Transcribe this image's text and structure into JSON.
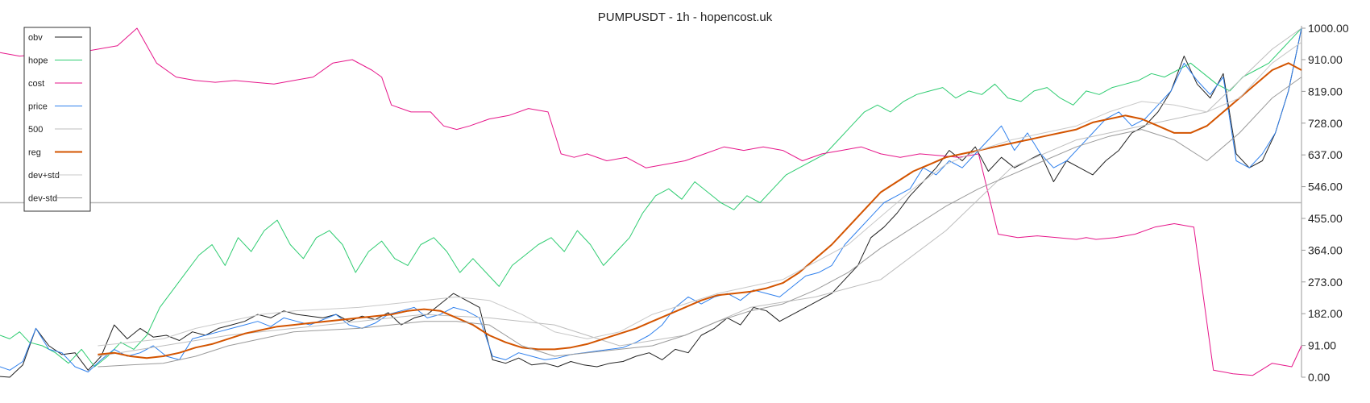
{
  "chart_data": {
    "type": "line",
    "title": "PUMPUSDT - 1h - hopencost.uk",
    "xlabel": "",
    "ylabel": "",
    "ylim": [
      0,
      1000
    ],
    "y_ticks": [
      "0.00",
      "91.00",
      "182.00",
      "273.00",
      "364.00",
      "455.00",
      "546.00",
      "637.00",
      "728.00",
      "819.00",
      "910.00",
      "1000.00"
    ],
    "y_tick_values": [
      0,
      91,
      182,
      273,
      364,
      455,
      546,
      637,
      728,
      819,
      910,
      1000
    ],
    "legend_position": "top-left",
    "grid": false,
    "reference_line": 500,
    "series": [
      {
        "name": "obv",
        "color": "#222222",
        "width": 1,
        "x": [
          0,
          3,
          7,
          11,
          15,
          19,
          23,
          27,
          31,
          35,
          39,
          43,
          47,
          51,
          55,
          59,
          63,
          67,
          71,
          75,
          79,
          83,
          87,
          91,
          95,
          99,
          103,
          107,
          111,
          115,
          119,
          123,
          127,
          131,
          135,
          139,
          143,
          147,
          151,
          155,
          159,
          163,
          167,
          171,
          175,
          179,
          183,
          187,
          191,
          195,
          199,
          203,
          207,
          211,
          215,
          219,
          223,
          227,
          231,
          235,
          239,
          243,
          247,
          251,
          255,
          259,
          263,
          267,
          271,
          275,
          279,
          283,
          287,
          291,
          295,
          299,
          303,
          307,
          311,
          315,
          319,
          323,
          327,
          331,
          335,
          339,
          343,
          347,
          351,
          355,
          359,
          363,
          367,
          371,
          375,
          379,
          383,
          387,
          391,
          395,
          399
        ],
        "values": [
          2,
          0,
          35,
          140,
          90,
          65,
          70,
          20,
          60,
          150,
          110,
          140,
          115,
          120,
          105,
          130,
          120,
          140,
          150,
          160,
          180,
          170,
          190,
          180,
          175,
          170,
          180,
          160,
          175,
          165,
          185,
          150,
          170,
          180,
          210,
          240,
          220,
          200,
          50,
          40,
          55,
          35,
          40,
          30,
          45,
          35,
          30,
          40,
          45,
          60,
          70,
          50,
          80,
          70,
          120,
          140,
          170,
          150,
          200,
          190,
          160,
          180,
          200,
          220,
          240,
          280,
          320,
          400,
          430,
          470,
          520,
          560,
          600,
          650,
          620,
          660,
          590,
          630,
          600,
          620,
          640,
          560,
          620,
          600,
          580,
          620,
          650,
          700,
          720,
          760,
          820,
          920,
          840,
          800,
          870,
          640,
          600,
          620,
          700,
          820,
          1000
        ]
      },
      {
        "name": "hope",
        "color": "#2ecc71",
        "width": 1,
        "x": [
          0,
          3,
          6,
          9,
          13,
          17,
          21,
          25,
          29,
          33,
          37,
          41,
          45,
          49,
          53,
          57,
          61,
          65,
          69,
          73,
          77,
          81,
          85,
          89,
          93,
          97,
          101,
          105,
          109,
          113,
          117,
          121,
          125,
          129,
          133,
          137,
          141,
          145,
          149,
          153,
          157,
          161,
          165,
          169,
          173,
          177,
          181,
          185,
          189,
          193,
          197,
          201,
          205,
          209,
          213,
          217,
          221,
          225,
          229,
          233,
          237,
          241,
          245,
          249,
          253,
          257,
          261,
          265,
          269,
          273,
          277,
          281,
          285,
          289,
          293,
          297,
          301,
          305,
          309,
          313,
          317,
          321,
          325,
          329,
          333,
          337,
          341,
          345,
          349,
          353,
          357,
          361,
          365,
          369,
          373,
          377,
          381,
          385,
          389,
          393,
          397,
          399
        ],
        "values": [
          120,
          110,
          130,
          100,
          90,
          70,
          40,
          80,
          30,
          60,
          100,
          80,
          120,
          200,
          250,
          300,
          350,
          380,
          320,
          400,
          360,
          420,
          450,
          380,
          340,
          400,
          420,
          380,
          300,
          360,
          390,
          340,
          320,
          380,
          400,
          360,
          300,
          340,
          300,
          260,
          320,
          350,
          380,
          400,
          360,
          420,
          380,
          320,
          360,
          400,
          470,
          520,
          540,
          510,
          560,
          530,
          500,
          480,
          520,
          500,
          540,
          580,
          600,
          620,
          640,
          680,
          720,
          760,
          780,
          760,
          790,
          810,
          820,
          830,
          800,
          820,
          810,
          840,
          800,
          790,
          820,
          830,
          800,
          780,
          820,
          810,
          830,
          840,
          850,
          870,
          860,
          880,
          900,
          870,
          840,
          820,
          860,
          880,
          900,
          940,
          980,
          1000
        ]
      },
      {
        "name": "cost",
        "color": "#e6168a",
        "width": 1,
        "x": [
          0,
          6,
          12,
          18,
          24,
          30,
          36,
          42,
          48,
          54,
          57,
          60,
          66,
          72,
          78,
          84,
          90,
          96,
          102,
          108,
          114,
          117,
          120,
          126,
          132,
          136,
          140,
          144,
          150,
          156,
          162,
          168,
          172,
          176,
          180,
          186,
          192,
          198,
          204,
          210,
          216,
          222,
          228,
          234,
          240,
          246,
          252,
          258,
          264,
          270,
          276,
          282,
          288,
          294,
          300,
          306,
          312,
          318,
          324,
          330,
          333,
          336,
          342,
          348,
          354,
          360,
          366,
          372,
          378,
          384,
          390,
          396,
          399
        ],
        "values": [
          930,
          920,
          925,
          910,
          930,
          940,
          950,
          1000,
          900,
          860,
          855,
          850,
          845,
          850,
          845,
          840,
          850,
          860,
          900,
          910,
          880,
          860,
          780,
          760,
          760,
          720,
          710,
          720,
          740,
          750,
          770,
          760,
          640,
          630,
          640,
          620,
          630,
          600,
          610,
          620,
          640,
          660,
          650,
          660,
          650,
          620,
          640,
          650,
          660,
          640,
          630,
          640,
          635,
          630,
          640,
          410,
          400,
          405,
          400,
          395,
          400,
          395,
          400,
          410,
          430,
          440,
          430,
          20,
          10,
          5,
          40,
          30,
          90
        ]
      },
      {
        "name": "price",
        "color": "#2f80ed",
        "width": 1,
        "x": [
          0,
          3,
          7,
          11,
          15,
          19,
          23,
          27,
          31,
          35,
          39,
          43,
          47,
          51,
          55,
          59,
          63,
          67,
          71,
          75,
          79,
          83,
          87,
          91,
          95,
          99,
          103,
          107,
          111,
          115,
          119,
          123,
          127,
          131,
          135,
          139,
          143,
          147,
          151,
          155,
          159,
          163,
          167,
          171,
          175,
          179,
          183,
          187,
          191,
          195,
          199,
          203,
          207,
          211,
          215,
          219,
          223,
          227,
          231,
          235,
          239,
          243,
          247,
          251,
          255,
          259,
          263,
          267,
          271,
          275,
          279,
          283,
          287,
          291,
          295,
          299,
          303,
          307,
          311,
          315,
          319,
          323,
          327,
          331,
          335,
          339,
          343,
          347,
          351,
          355,
          359,
          363,
          367,
          371,
          375,
          379,
          383,
          387,
          391,
          395,
          399
        ],
        "values": [
          30,
          20,
          45,
          140,
          80,
          70,
          30,
          15,
          50,
          80,
          60,
          70,
          90,
          60,
          50,
          110,
          120,
          130,
          140,
          150,
          160,
          145,
          170,
          160,
          150,
          165,
          180,
          150,
          140,
          155,
          180,
          190,
          200,
          170,
          180,
          200,
          190,
          170,
          60,
          50,
          70,
          60,
          50,
          55,
          65,
          70,
          75,
          80,
          85,
          100,
          120,
          150,
          200,
          230,
          210,
          230,
          240,
          220,
          250,
          240,
          230,
          260,
          290,
          300,
          320,
          380,
          420,
          460,
          500,
          520,
          540,
          600,
          580,
          620,
          600,
          640,
          680,
          720,
          650,
          700,
          640,
          600,
          620,
          660,
          700,
          740,
          760,
          720,
          740,
          780,
          820,
          900,
          850,
          810,
          860,
          620,
          600,
          640,
          700,
          820,
          1000
        ]
      },
      {
        "name": "500",
        "color": "#bdbdbd",
        "width": 1,
        "x": [
          30,
          50,
          70,
          90,
          110,
          130,
          150,
          170,
          190,
          210,
          230,
          250,
          270,
          290,
          310,
          330,
          350,
          370,
          390,
          399
        ],
        "values": [
          60,
          90,
          120,
          140,
          160,
          180,
          170,
          150,
          90,
          120,
          200,
          230,
          280,
          420,
          600,
          680,
          720,
          760,
          940,
          1000
        ]
      },
      {
        "name": "reg",
        "color": "#d35400",
        "width": 2,
        "x": [
          30,
          35,
          40,
          45,
          50,
          55,
          60,
          65,
          70,
          75,
          80,
          85,
          90,
          95,
          100,
          105,
          110,
          115,
          120,
          125,
          130,
          135,
          140,
          145,
          150,
          155,
          160,
          165,
          170,
          175,
          180,
          185,
          190,
          195,
          200,
          205,
          210,
          215,
          220,
          225,
          230,
          235,
          240,
          245,
          250,
          255,
          260,
          265,
          270,
          275,
          280,
          285,
          290,
          295,
          300,
          305,
          310,
          315,
          320,
          325,
          330,
          335,
          340,
          345,
          350,
          355,
          360,
          365,
          370,
          375,
          380,
          385,
          390,
          395,
          399
        ],
        "values": [
          65,
          70,
          60,
          55,
          60,
          70,
          85,
          95,
          110,
          125,
          135,
          145,
          150,
          155,
          160,
          165,
          170,
          175,
          180,
          190,
          195,
          190,
          170,
          150,
          120,
          100,
          85,
          80,
          80,
          85,
          95,
          110,
          125,
          140,
          160,
          180,
          200,
          220,
          235,
          240,
          245,
          255,
          270,
          300,
          340,
          380,
          430,
          480,
          530,
          560,
          590,
          610,
          630,
          640,
          650,
          660,
          670,
          680,
          690,
          700,
          710,
          730,
          740,
          750,
          740,
          720,
          700,
          700,
          720,
          760,
          800,
          840,
          880,
          900,
          880
        ]
      },
      {
        "name": "dev+std",
        "color": "#c8c8c8",
        "width": 1,
        "x": [
          30,
          40,
          50,
          60,
          70,
          80,
          90,
          100,
          110,
          120,
          130,
          140,
          150,
          160,
          170,
          180,
          190,
          200,
          210,
          220,
          230,
          240,
          250,
          260,
          270,
          280,
          290,
          300,
          310,
          320,
          330,
          340,
          350,
          360,
          370,
          380,
          390,
          399
        ],
        "values": [
          90,
          100,
          110,
          140,
          160,
          180,
          190,
          195,
          200,
          210,
          220,
          230,
          220,
          180,
          130,
          110,
          130,
          180,
          210,
          240,
          260,
          280,
          330,
          380,
          460,
          540,
          610,
          650,
          680,
          700,
          720,
          760,
          790,
          780,
          760,
          800,
          900,
          960
        ]
      },
      {
        "name": "dev-std",
        "color": "#9a9a9a",
        "width": 1,
        "x": [
          30,
          40,
          50,
          60,
          70,
          80,
          90,
          100,
          110,
          120,
          130,
          140,
          150,
          160,
          170,
          180,
          190,
          200,
          210,
          220,
          230,
          240,
          250,
          260,
          270,
          280,
          290,
          300,
          310,
          320,
          330,
          340,
          350,
          360,
          370,
          380,
          390,
          399
        ],
        "values": [
          30,
          35,
          40,
          60,
          90,
          110,
          130,
          135,
          140,
          150,
          160,
          160,
          150,
          90,
          60,
          70,
          80,
          90,
          120,
          160,
          190,
          210,
          250,
          300,
          370,
          430,
          490,
          540,
          580,
          620,
          660,
          690,
          710,
          680,
          620,
          700,
          800,
          860
        ]
      }
    ]
  }
}
